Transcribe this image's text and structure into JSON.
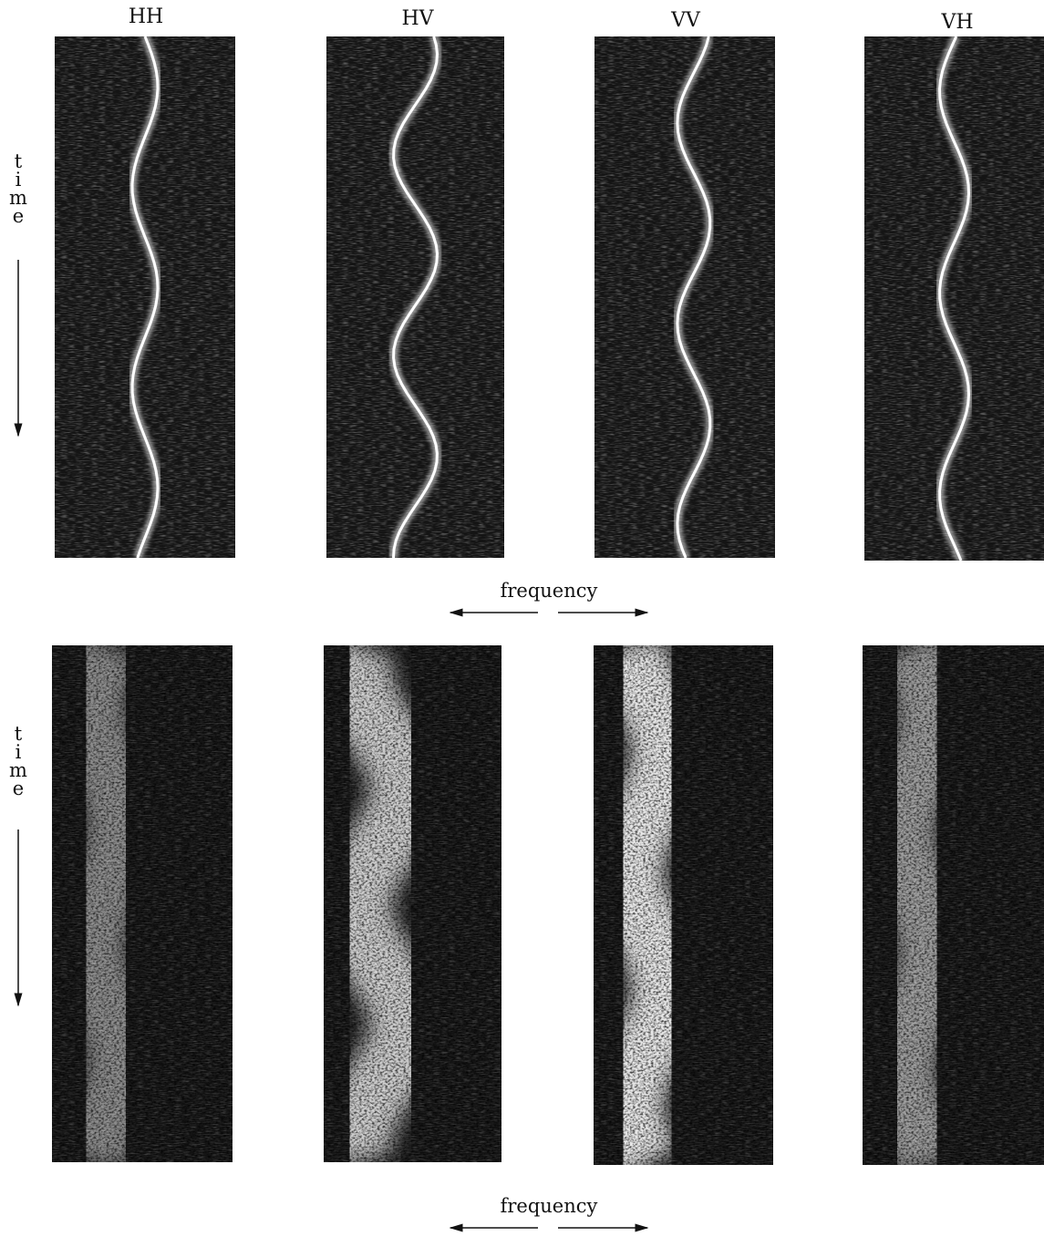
{
  "columns": [
    "HH",
    "HV",
    "VV",
    "VH"
  ],
  "rows": [
    {
      "time_label": "time",
      "frequency_label": "frequency"
    },
    {
      "time_label": "time",
      "frequency_label": "frequency"
    }
  ]
}
